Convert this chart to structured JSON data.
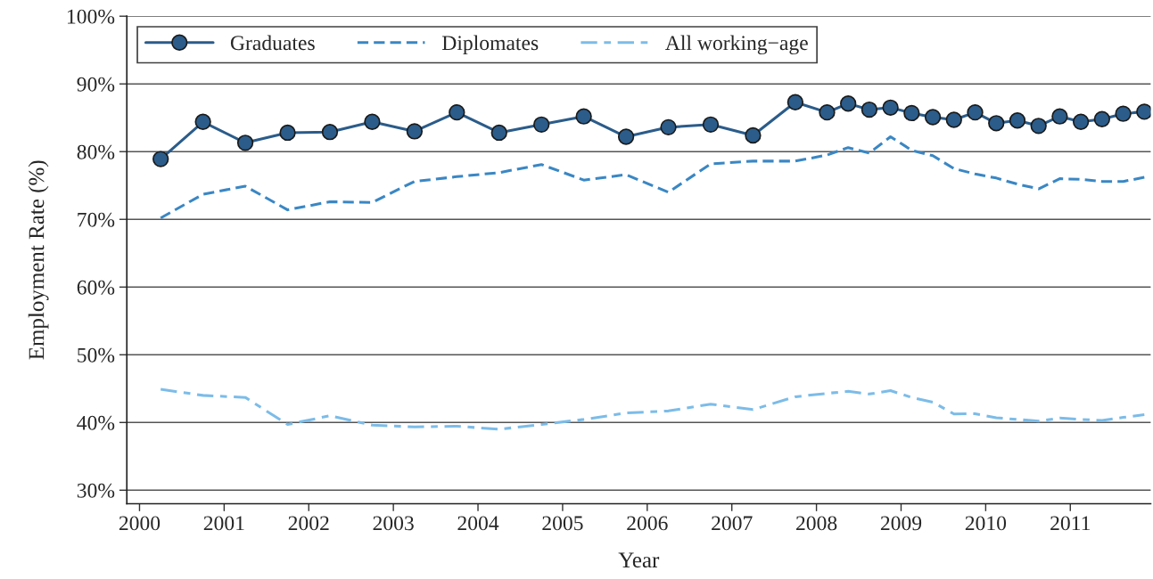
{
  "chart_data": {
    "type": "line",
    "xlabel": "Year",
    "ylabel": "Employment Rate (%)",
    "xlim": [
      1999.85,
      2011.95
    ],
    "xticks": [
      2000,
      2001,
      2002,
      2003,
      2004,
      2005,
      2006,
      2007,
      2008,
      2009,
      2010,
      2011
    ],
    "ylim": [
      28,
      100
    ],
    "yticks": [
      {
        "value": 30,
        "label": "30%"
      },
      {
        "value": 40,
        "label": "40%"
      },
      {
        "value": 50,
        "label": "50%"
      },
      {
        "value": 60,
        "label": "60%"
      },
      {
        "value": 70,
        "label": "70%"
      },
      {
        "value": 80,
        "label": "80%"
      },
      {
        "value": 90,
        "label": "90%"
      },
      {
        "value": 100,
        "label": "100%"
      }
    ],
    "grid": "y",
    "legend": "top left",
    "x": [
      2000.25,
      2000.75,
      2001.25,
      2001.75,
      2002.25,
      2002.75,
      2003.25,
      2003.75,
      2004.25,
      2004.75,
      2005.25,
      2005.75,
      2006.25,
      2006.75,
      2007.25,
      2007.75,
      2008.125,
      2008.375,
      2008.625,
      2008.875,
      2009.125,
      2009.375,
      2009.625,
      2009.875,
      2010.125,
      2010.375,
      2010.625,
      2010.875,
      2011.125,
      2011.375,
      2011.625,
      2011.875
    ],
    "series": [
      {
        "name": "Graduates",
        "color": "#2b5c8a",
        "marker": "circle",
        "line_style": "solid",
        "values": [
          78.9,
          84.4,
          81.3,
          82.8,
          82.9,
          84.4,
          83.0,
          85.8,
          82.8,
          84.0,
          85.2,
          82.2,
          83.6,
          84.0,
          82.4,
          87.3,
          85.8,
          87.1,
          86.2,
          86.5,
          85.7,
          85.1,
          84.7,
          85.8,
          84.2,
          84.6,
          83.8,
          85.2,
          84.4,
          84.8,
          85.6,
          85.9
        ]
      },
      {
        "name": "Diplomates",
        "color": "#3a87c4",
        "marker": "none",
        "line_style": "dashed",
        "values": [
          70.2,
          73.7,
          74.9,
          71.4,
          72.6,
          72.5,
          75.6,
          76.3,
          76.9,
          78.1,
          75.8,
          76.6,
          74.0,
          78.2,
          78.6,
          78.6,
          79.5,
          80.6,
          79.8,
          82.2,
          80.2,
          79.4,
          77.5,
          76.7,
          76.1,
          75.2,
          74.5,
          76.0,
          75.9,
          75.6,
          75.6,
          76.2
        ]
      },
      {
        "name": "All working−age",
        "color": "#7cbce8",
        "marker": "none",
        "line_style": "dashdot",
        "values": [
          44.9,
          44.0,
          43.7,
          39.7,
          41.0,
          39.6,
          39.35,
          39.45,
          39.0,
          39.7,
          40.45,
          41.4,
          41.7,
          42.7,
          41.9,
          43.8,
          44.3,
          44.6,
          44.2,
          44.7,
          43.7,
          43.0,
          41.25,
          41.3,
          40.7,
          40.45,
          40.2,
          40.65,
          40.45,
          40.3,
          40.75,
          41.15
        ]
      }
    ]
  }
}
